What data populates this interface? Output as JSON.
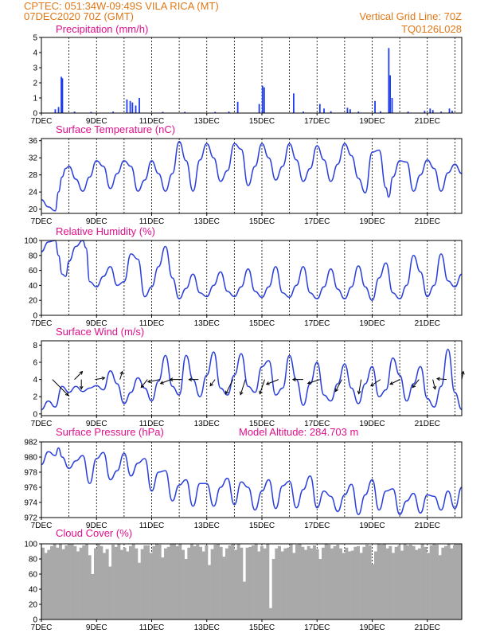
{
  "header": {
    "line1": "CPTEC:   051:34W-09:49S   VILA RICA (MT)",
    "line2": "07DEC2020 70Z (GMT)",
    "grid_note": "Vertical Grid Line: 70Z",
    "code": "TQ0126L028",
    "model_altitude": "Model Altitude: 284.703 m"
  },
  "colors": {
    "header": "#e07818",
    "title": "#e0108c",
    "line": "#2a3fdc",
    "bar": "#1f3cf0",
    "cloud": "#a9a9a9"
  },
  "chart_data": [
    {
      "type": "bar",
      "title": "Precipitation (mm/h)",
      "x_ticks": [
        "7DEC",
        "9DEC",
        "11DEC",
        "13DEC",
        "15DEC",
        "17DEC",
        "19DEC",
        "21DEC"
      ],
      "x_range": [
        0,
        15.25
      ],
      "ylim": [
        0,
        5
      ],
      "y_ticks": [
        0,
        1,
        2,
        3,
        4,
        5
      ],
      "grid": "vertical dashed at 00Z",
      "bars": [
        [
          0.5,
          0.25
        ],
        [
          0.62,
          0.4
        ],
        [
          0.72,
          2.4
        ],
        [
          0.76,
          2.3
        ],
        [
          3.1,
          0.9
        ],
        [
          3.22,
          0.8
        ],
        [
          3.3,
          0.7
        ],
        [
          3.42,
          0.5
        ],
        [
          3.55,
          1.0
        ],
        [
          7.12,
          0.75
        ],
        [
          7.9,
          0.6
        ],
        [
          8.02,
          1.8
        ],
        [
          8.08,
          1.7
        ],
        [
          9.15,
          1.3
        ],
        [
          10.1,
          0.6
        ],
        [
          10.25,
          0.3
        ],
        [
          11.1,
          0.35
        ],
        [
          11.2,
          0.25
        ],
        [
          12.1,
          0.8
        ],
        [
          12.6,
          4.3
        ],
        [
          12.65,
          2.5
        ],
        [
          12.72,
          1.0
        ],
        [
          13.9,
          0.15
        ],
        [
          14.1,
          0.3
        ],
        [
          14.2,
          0.2
        ],
        [
          14.8,
          0.3
        ],
        [
          14.9,
          0.15
        ],
        [
          1.2,
          0.1
        ],
        [
          1.8,
          0.08
        ],
        [
          2.6,
          0.1
        ],
        [
          4.4,
          0.08
        ],
        [
          5.2,
          0.08
        ],
        [
          6.3,
          0.08
        ],
        [
          6.8,
          0.1
        ],
        [
          9.5,
          0.1
        ],
        [
          10.5,
          0.12
        ],
        [
          11.5,
          0.1
        ],
        [
          12.3,
          0.12
        ],
        [
          13.3,
          0.1
        ],
        [
          14.5,
          0.1
        ]
      ]
    },
    {
      "type": "line",
      "title": "Surface Temperature (nC)",
      "x_ticks": [
        "7DEC",
        "9DEC",
        "11DEC",
        "13DEC",
        "15DEC",
        "17DEC",
        "19DEC",
        "21DEC"
      ],
      "ylim": [
        19,
        36.5
      ],
      "y_ticks": [
        20,
        24,
        28,
        32,
        36
      ],
      "x": [
        0,
        0.25,
        0.5,
        0.62,
        0.75,
        0.88,
        1,
        1.25,
        1.5,
        1.75,
        2,
        2.25,
        2.5,
        2.75,
        3,
        3.25,
        3.5,
        3.75,
        4,
        4.25,
        4.5,
        4.75,
        5,
        5.25,
        5.5,
        5.75,
        6,
        6.25,
        6.5,
        6.75,
        7,
        7.25,
        7.5,
        7.75,
        8,
        8.25,
        8.5,
        8.75,
        9,
        9.25,
        9.5,
        9.75,
        10,
        10.25,
        10.5,
        10.75,
        11,
        11.25,
        11.5,
        11.75,
        12,
        12.25,
        12.5,
        12.6,
        12.75,
        13,
        13.25,
        13.5,
        13.75,
        14,
        14.25,
        14.5,
        14.75,
        15,
        15.25
      ],
      "values": [
        22.2,
        20.5,
        19.6,
        24,
        27.5,
        29.5,
        30,
        27,
        24.2,
        27.5,
        31.3,
        30,
        24.8,
        28.3,
        31.3,
        30,
        24.2,
        26.8,
        31.3,
        28.3,
        24.2,
        28.3,
        35.8,
        31.3,
        24.2,
        31.5,
        35.3,
        32,
        26.5,
        29,
        35.3,
        34,
        25.5,
        30,
        35.3,
        32,
        26.8,
        30,
        35.3,
        31.5,
        26.5,
        29.5,
        34.8,
        31.5,
        26.5,
        30.5,
        35.3,
        32.5,
        27.2,
        23.8,
        33.3,
        33.8,
        25,
        22.8,
        27.5,
        31.3,
        31,
        24.2,
        28,
        31.5,
        29.5,
        24.2,
        28.5,
        30.5,
        28.3
      ]
    },
    {
      "type": "line",
      "title": "Relative Humidity (%)",
      "x_ticks": [
        "7DEC",
        "9DEC",
        "11DEC",
        "13DEC",
        "15DEC",
        "17DEC",
        "19DEC",
        "21DEC"
      ],
      "ylim": [
        0,
        100
      ],
      "y_ticks": [
        0,
        20,
        40,
        60,
        80,
        100
      ],
      "x": [
        0,
        0.25,
        0.5,
        0.62,
        0.75,
        0.88,
        1,
        1.25,
        1.5,
        1.62,
        1.75,
        2,
        2.25,
        2.5,
        2.75,
        3,
        3.25,
        3.5,
        3.75,
        4,
        4.25,
        4.5,
        4.75,
        5,
        5.25,
        5.5,
        5.75,
        6,
        6.25,
        6.5,
        6.75,
        7,
        7.25,
        7.5,
        7.75,
        8,
        8.25,
        8.5,
        8.75,
        9,
        9.25,
        9.5,
        9.75,
        10,
        10.25,
        10.5,
        10.75,
        11,
        11.25,
        11.5,
        11.75,
        12,
        12.25,
        12.5,
        12.75,
        13,
        13.25,
        13.5,
        13.75,
        14,
        14.25,
        14.5,
        14.75,
        15,
        15.25
      ],
      "values": [
        85,
        98,
        100,
        80,
        55,
        52,
        72,
        92,
        100,
        90,
        45,
        38,
        52,
        65,
        40,
        45,
        82,
        75,
        25,
        38,
        65,
        92,
        50,
        22,
        36,
        55,
        30,
        25,
        40,
        58,
        32,
        25,
        38,
        62,
        32,
        24,
        38,
        65,
        30,
        24,
        40,
        65,
        30,
        22,
        38,
        62,
        35,
        22,
        38,
        66,
        38,
        20,
        50,
        70,
        30,
        22,
        40,
        80,
        58,
        25,
        40,
        82,
        46,
        38,
        55
      ]
    },
    {
      "type": "line",
      "title": "Surface Wind (m/s)",
      "x_ticks": [
        "7DEC",
        "9DEC",
        "11DEC",
        "13DEC",
        "15DEC",
        "17DEC",
        "19DEC",
        "21DEC"
      ],
      "ylim": [
        -0.2,
        8.5
      ],
      "y_ticks": [
        0,
        2,
        4,
        6,
        8
      ],
      "x": [
        0,
        0.25,
        0.5,
        0.75,
        1,
        1.25,
        1.5,
        1.75,
        2,
        2.25,
        2.5,
        2.75,
        3,
        3.25,
        3.5,
        3.75,
        4,
        4.25,
        4.5,
        4.75,
        5,
        5.25,
        5.5,
        5.75,
        6,
        6.25,
        6.5,
        6.75,
        7,
        7.25,
        7.5,
        7.75,
        8,
        8.25,
        8.5,
        8.75,
        9,
        9.25,
        9.5,
        9.75,
        10,
        10.25,
        10.5,
        10.75,
        11,
        11.25,
        11.5,
        11.75,
        12,
        12.25,
        12.5,
        12.75,
        13,
        13.25,
        13.5,
        13.75,
        14,
        14.25,
        14.5,
        14.75,
        15,
        15.25
      ],
      "values": [
        0.5,
        1.5,
        0.8,
        3.2,
        2.5,
        3.2,
        2.6,
        3,
        3.3,
        2.8,
        5,
        3.5,
        1.2,
        2.5,
        4.2,
        3,
        1.5,
        3.8,
        6.8,
        3.2,
        2.2,
        6.8,
        4,
        2,
        4.5,
        7.2,
        3,
        2.2,
        4.5,
        7,
        3.2,
        2.5,
        5.5,
        6.2,
        2.2,
        3,
        6.8,
        4,
        1,
        3.5,
        6,
        2.2,
        1.5,
        3.5,
        5.8,
        3,
        1.2,
        3.5,
        5.5,
        2,
        2.8,
        6.5,
        4.5,
        1.5,
        3.5,
        5.5,
        1.8,
        0.8,
        3.2,
        7.5,
        2.5,
        0.5
      ],
      "arrows": [
        [
          0.4,
          2,
          -2
        ],
        [
          1.2,
          1,
          1
        ],
        [
          1.45,
          0,
          -1.2
        ],
        [
          1.95,
          1.2,
          0.2
        ],
        [
          2.85,
          0.3,
          1
        ],
        [
          3.85,
          -0.8,
          -1
        ],
        [
          4.3,
          -1.5,
          -0.3
        ],
        [
          4.7,
          -1.3,
          -0.5
        ],
        [
          5.1,
          -1.5,
          0
        ],
        [
          5.7,
          -1.2,
          0
        ],
        [
          6.3,
          -0.6,
          -0.8
        ],
        [
          6.95,
          -0.9,
          -1.8
        ],
        [
          7.4,
          -0.6,
          -1.9
        ],
        [
          8.1,
          -0.6,
          -1.8
        ],
        [
          8.6,
          -1.5,
          -0.6
        ],
        [
          9.5,
          -1.3,
          0
        ],
        [
          10.1,
          -1.5,
          -0.5
        ],
        [
          10.9,
          -0.8,
          -1.5
        ],
        [
          11.6,
          -0.3,
          -1.8
        ],
        [
          12.3,
          -1.2,
          -0.8
        ],
        [
          13.0,
          -1.2,
          -0.6
        ],
        [
          13.7,
          -0.8,
          -1
        ],
        [
          14.2,
          0.3,
          -1.2
        ],
        [
          14.7,
          -1.2,
          0.1
        ],
        [
          15.25,
          0.2,
          1
        ]
      ]
    },
    {
      "type": "line",
      "title": "Surface Pressure (hPa)",
      "x_ticks": [
        "7DEC",
        "9DEC",
        "11DEC",
        "13DEC",
        "15DEC",
        "17DEC",
        "19DEC",
        "21DEC"
      ],
      "ylim": [
        972,
        982
      ],
      "y_ticks": [
        972,
        974,
        976,
        978,
        980,
        982
      ],
      "x": [
        0,
        0.25,
        0.5,
        0.62,
        0.75,
        1,
        1.25,
        1.5,
        1.75,
        2,
        2.25,
        2.5,
        2.75,
        3,
        3.25,
        3.5,
        3.75,
        4,
        4.25,
        4.5,
        4.75,
        5,
        5.25,
        5.5,
        5.75,
        6,
        6.25,
        6.5,
        6.75,
        7,
        7.25,
        7.5,
        7.75,
        8,
        8.25,
        8.5,
        8.75,
        9,
        9.25,
        9.5,
        9.75,
        10,
        10.25,
        10.5,
        10.75,
        11,
        11.25,
        11.5,
        11.75,
        12,
        12.25,
        12.5,
        12.75,
        13,
        13.25,
        13.5,
        13.75,
        14,
        14.25,
        14.5,
        14.75,
        15,
        15.25
      ],
      "values": [
        979,
        980.7,
        980.2,
        981.2,
        980,
        978.5,
        979.5,
        980.2,
        976.5,
        979.8,
        980.6,
        977,
        978.2,
        980.5,
        977.5,
        979.2,
        979.8,
        975.5,
        978,
        978.2,
        974.2,
        976.3,
        977,
        973.5,
        976.5,
        976.5,
        973.5,
        976,
        977.2,
        973.7,
        976.7,
        976,
        973,
        975.5,
        977,
        973.2,
        976.2,
        976.8,
        973.3,
        975.7,
        977.5,
        973.3,
        975.5,
        974.8,
        972.8,
        975,
        976.4,
        972.4,
        975,
        977,
        973,
        975.5,
        975.8,
        972.4,
        974.2,
        975.2,
        972.6,
        975,
        974.8,
        973,
        975.5,
        973.2,
        976
      ]
    },
    {
      "type": "bar",
      "title": "Cloud Cover (%)",
      "x_ticks": [
        "7DEC",
        "9DEC",
        "11DEC",
        "13DEC",
        "15DEC",
        "17DEC",
        "19DEC",
        "21DEC"
      ],
      "ylim": [
        0,
        100
      ],
      "y_ticks": [
        0,
        20,
        40,
        60,
        80,
        100
      ],
      "values": [
        95,
        88,
        92,
        97,
        100,
        95,
        100,
        93,
        98,
        100,
        100,
        97,
        90,
        95,
        98,
        100,
        85,
        60,
        94,
        100,
        97,
        88,
        93,
        70,
        99,
        96,
        100,
        92,
        95,
        90,
        97,
        100,
        94,
        75,
        93,
        98,
        98,
        88,
        97,
        100,
        99,
        82,
        94,
        96,
        100,
        100,
        97,
        100,
        92,
        80,
        95,
        100,
        97,
        99,
        96,
        90,
        98,
        72,
        93,
        99,
        100,
        96,
        83,
        94,
        98,
        100,
        92,
        100,
        95,
        50,
        95,
        96,
        98,
        100,
        90,
        97,
        94,
        100,
        15,
        80,
        94,
        97,
        90,
        94,
        95,
        100,
        88,
        99,
        100,
        96,
        92,
        97,
        94,
        98,
        93,
        80,
        95,
        100,
        99,
        94,
        97,
        99,
        94,
        88,
        95,
        90,
        91,
        96,
        97,
        88,
        96,
        99,
        98,
        73,
        90,
        100,
        99,
        100,
        94,
        97,
        88,
        96,
        98,
        91,
        100,
        98,
        99,
        97,
        92,
        94,
        100,
        96,
        88,
        98,
        100,
        99,
        85,
        95,
        97,
        100,
        94,
        98,
        100,
        100
      ]
    }
  ]
}
